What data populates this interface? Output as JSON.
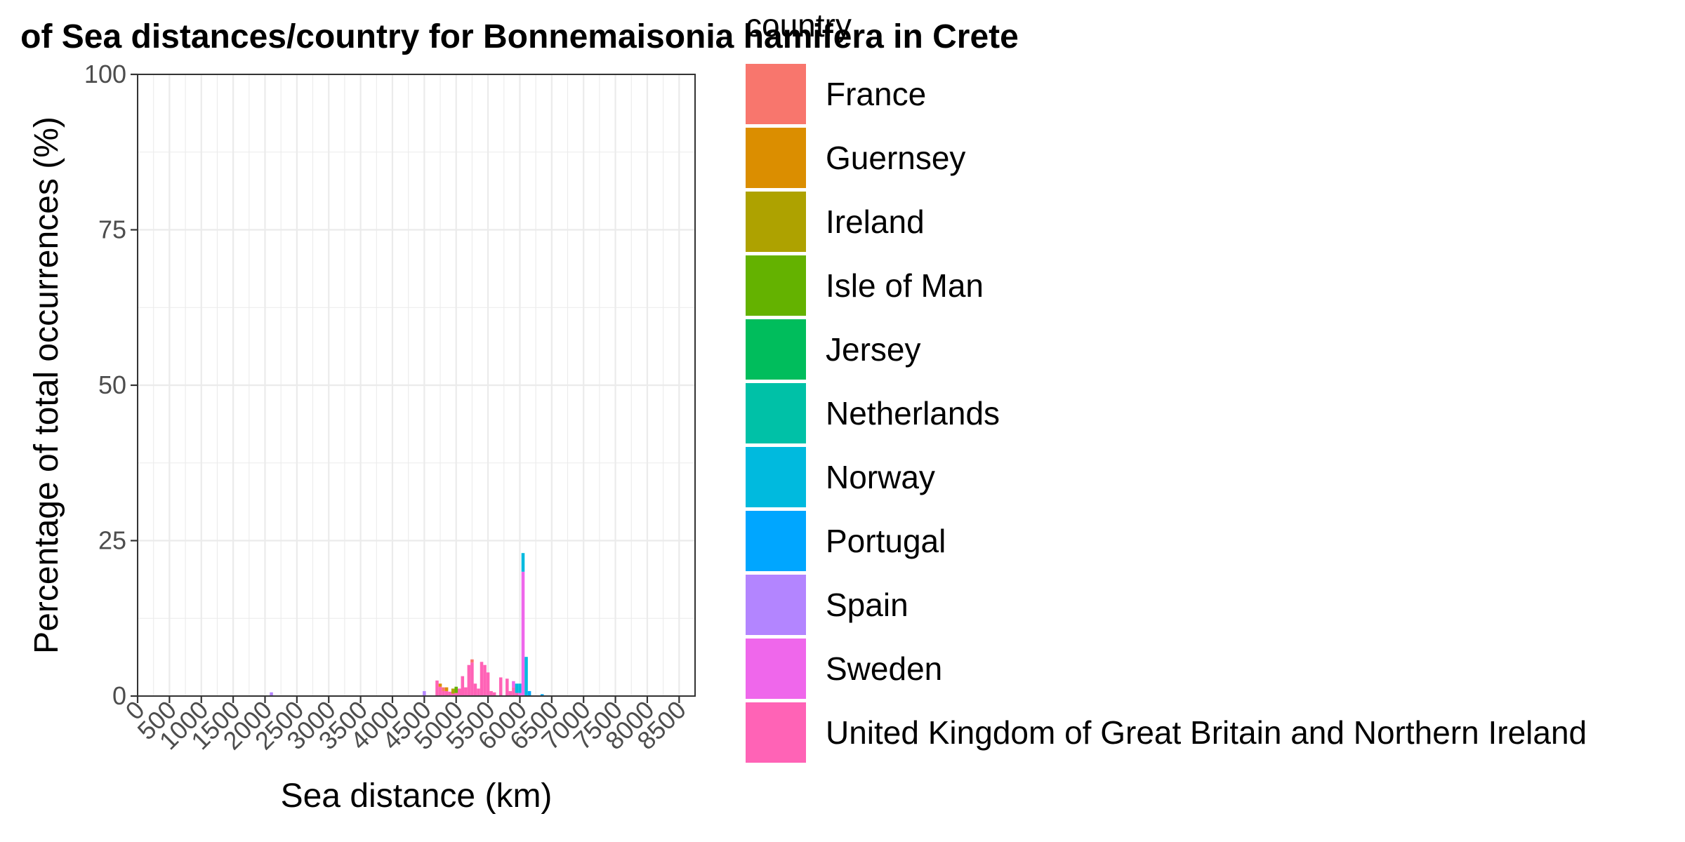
{
  "chart_data": {
    "type": "bar",
    "stacked": true,
    "title": "of Sea distances/country for Bonnemaisonia hamifera in Crete",
    "xlabel": "Sea distance (km)",
    "ylabel": "Percentage of total occurrences (%)",
    "xlim": [
      0,
      8750
    ],
    "ylim": [
      0,
      100
    ],
    "x_ticks": [
      "0",
      "500",
      "1000",
      "1500",
      "2000",
      "2500",
      "3000",
      "3500",
      "4000",
      "4500",
      "5000",
      "5500",
      "6000",
      "6500",
      "7000",
      "7500",
      "8000",
      "8500"
    ],
    "y_ticks": [
      "0",
      "25",
      "50",
      "75",
      "100"
    ],
    "grid": true,
    "bin_width_km": 50,
    "legend": {
      "title": "country",
      "position": "right",
      "entries": [
        {
          "name": "France",
          "color": "#F8766D"
        },
        {
          "name": "Guernsey",
          "color": "#DB8E00"
        },
        {
          "name": "Ireland",
          "color": "#AEA200"
        },
        {
          "name": "Isle of Man",
          "color": "#64B200"
        },
        {
          "name": "Jersey",
          "color": "#00BD5C"
        },
        {
          "name": "Netherlands",
          "color": "#00C1A7"
        },
        {
          "name": "Norway",
          "color": "#00BADE"
        },
        {
          "name": "Portugal",
          "color": "#00A6FF"
        },
        {
          "name": "Spain",
          "color": "#B385FF"
        },
        {
          "name": "Sweden",
          "color": "#EF67EB"
        },
        {
          "name": "United Kingdom of Great Britain and Northern Ireland",
          "color": "#FF63B6"
        }
      ]
    },
    "bars": [
      {
        "x": 2100,
        "segments": [
          {
            "country": "Spain",
            "value": 0.6
          }
        ]
      },
      {
        "x": 4500,
        "segments": [
          {
            "country": "Spain",
            "value": 0.8
          }
        ]
      },
      {
        "x": 4700,
        "segments": [
          {
            "country": "United Kingdom of Great Britain and Northern Ireland",
            "value": 2.5
          }
        ]
      },
      {
        "x": 4750,
        "segments": [
          {
            "country": "Guernsey",
            "value": 0.5
          },
          {
            "country": "United Kingdom of Great Britain and Northern Ireland",
            "value": 1.5
          }
        ]
      },
      {
        "x": 4800,
        "segments": [
          {
            "country": "France",
            "value": 0.6
          },
          {
            "country": "United Kingdom of Great Britain and Northern Ireland",
            "value": 0.8
          }
        ]
      },
      {
        "x": 4850,
        "segments": [
          {
            "country": "Guernsey",
            "value": 0.6
          },
          {
            "country": "United Kingdom of Great Britain and Northern Ireland",
            "value": 0.8
          }
        ]
      },
      {
        "x": 4900,
        "segments": [
          {
            "country": "United Kingdom of Great Britain and Northern Ireland",
            "value": 0.7
          }
        ]
      },
      {
        "x": 4950,
        "segments": [
          {
            "country": "Ireland",
            "value": 0.8
          },
          {
            "country": "United Kingdom of Great Britain and Northern Ireland",
            "value": 0.4
          }
        ]
      },
      {
        "x": 5000,
        "segments": [
          {
            "country": "Isle of Man",
            "value": 1.0
          },
          {
            "country": "United Kingdom of Great Britain and Northern Ireland",
            "value": 0.5
          }
        ]
      },
      {
        "x": 5050,
        "segments": [
          {
            "country": "United Kingdom of Great Britain and Northern Ireland",
            "value": 1.2
          }
        ]
      },
      {
        "x": 5100,
        "segments": [
          {
            "country": "United Kingdom of Great Britain and Northern Ireland",
            "value": 3.2
          }
        ]
      },
      {
        "x": 5150,
        "segments": [
          {
            "country": "United Kingdom of Great Britain and Northern Ireland",
            "value": 1.4
          }
        ]
      },
      {
        "x": 5200,
        "segments": [
          {
            "country": "United Kingdom of Great Britain and Northern Ireland",
            "value": 5.0
          }
        ]
      },
      {
        "x": 5250,
        "segments": [
          {
            "country": "France",
            "value": 0.5
          },
          {
            "country": "United Kingdom of Great Britain and Northern Ireland",
            "value": 5.4
          }
        ]
      },
      {
        "x": 5300,
        "segments": [
          {
            "country": "United Kingdom of Great Britain and Northern Ireland",
            "value": 2.0
          }
        ]
      },
      {
        "x": 5350,
        "segments": [
          {
            "country": "United Kingdom of Great Britain and Northern Ireland",
            "value": 1.2
          }
        ]
      },
      {
        "x": 5400,
        "segments": [
          {
            "country": "United Kingdom of Great Britain and Northern Ireland",
            "value": 5.5
          }
        ]
      },
      {
        "x": 5450,
        "segments": [
          {
            "country": "United Kingdom of Great Britain and Northern Ireland",
            "value": 5.0
          }
        ]
      },
      {
        "x": 5500,
        "segments": [
          {
            "country": "United Kingdom of Great Britain and Northern Ireland",
            "value": 3.8
          }
        ]
      },
      {
        "x": 5550,
        "segments": [
          {
            "country": "United Kingdom of Great Britain and Northern Ireland",
            "value": 0.8
          }
        ]
      },
      {
        "x": 5600,
        "segments": [
          {
            "country": "United Kingdom of Great Britain and Northern Ireland",
            "value": 0.6
          }
        ]
      },
      {
        "x": 5700,
        "segments": [
          {
            "country": "United Kingdom of Great Britain and Northern Ireland",
            "value": 3.0
          }
        ]
      },
      {
        "x": 5800,
        "segments": [
          {
            "country": "United Kingdom of Great Britain and Northern Ireland",
            "value": 2.8
          }
        ]
      },
      {
        "x": 5850,
        "segments": [
          {
            "country": "United Kingdom of Great Britain and Northern Ireland",
            "value": 0.8
          }
        ]
      },
      {
        "x": 5900,
        "segments": [
          {
            "country": "Sweden",
            "value": 1.0
          },
          {
            "country": "United Kingdom of Great Britain and Northern Ireland",
            "value": 1.4
          }
        ]
      },
      {
        "x": 5950,
        "segments": [
          {
            "country": "Norway",
            "value": 1.5
          },
          {
            "country": "United Kingdom of Great Britain and Northern Ireland",
            "value": 0.5
          }
        ]
      },
      {
        "x": 6000,
        "segments": [
          {
            "country": "Norway",
            "value": 1.5
          },
          {
            "country": "Sweden",
            "value": 0.5
          }
        ]
      },
      {
        "x": 6050,
        "segments": [
          {
            "country": "Sweden",
            "value": 20.0
          },
          {
            "country": "Norway",
            "value": 3.0
          }
        ]
      },
      {
        "x": 6100,
        "segments": [
          {
            "country": "Norway",
            "value": 6.3
          }
        ]
      },
      {
        "x": 6150,
        "segments": [
          {
            "country": "Portugal",
            "value": 0.8
          }
        ]
      },
      {
        "x": 6350,
        "segments": [
          {
            "country": "Portugal",
            "value": 0.3
          }
        ]
      }
    ]
  }
}
